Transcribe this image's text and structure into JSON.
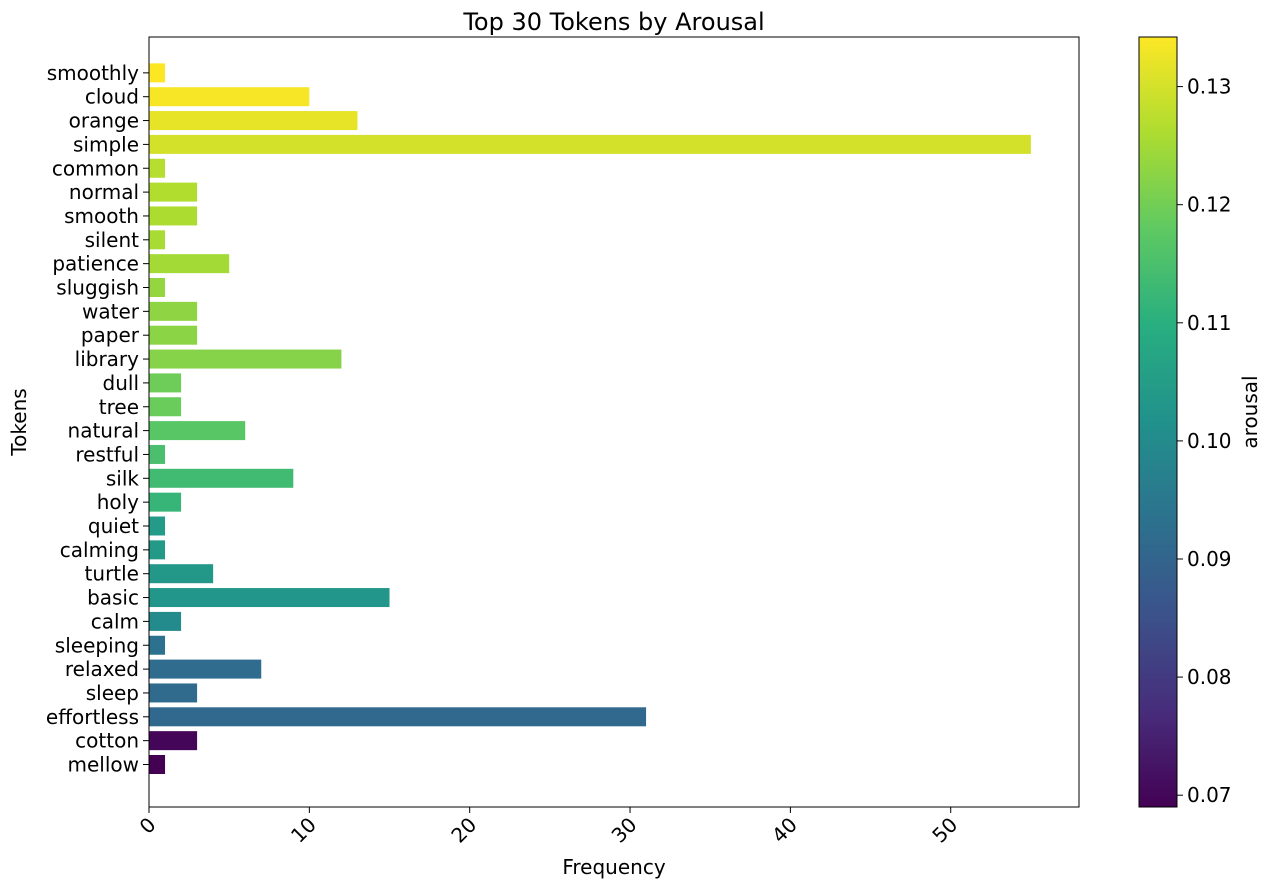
{
  "chart_data": {
    "type": "bar",
    "orientation": "horizontal",
    "title": "Top 30 Tokens by Arousal",
    "xlabel": "Frequency",
    "ylabel": "Tokens",
    "xlim": [
      0,
      58
    ],
    "xticks": [
      "0",
      "10",
      "20",
      "30",
      "40",
      "50"
    ],
    "xtick_values": [
      0,
      10,
      20,
      30,
      40,
      50
    ],
    "grid": false,
    "colorbar": {
      "label": "arousal",
      "range": [
        0.069,
        0.1342
      ],
      "ticks": [
        "0.07",
        "0.08",
        "0.09",
        "0.10",
        "0.11",
        "0.12",
        "0.13"
      ],
      "tick_values": [
        0.07,
        0.08,
        0.09,
        0.1,
        0.11,
        0.12,
        0.13
      ],
      "colormap": "viridis"
    },
    "categories": [
      "mellow",
      "cotton",
      "effortless",
      "sleep",
      "relaxed",
      "sleeping",
      "calm",
      "basic",
      "turtle",
      "calming",
      "quiet",
      "holy",
      "silk",
      "restful",
      "natural",
      "tree",
      "dull",
      "library",
      "paper",
      "water",
      "sluggish",
      "patience",
      "silent",
      "smooth",
      "normal",
      "common",
      "simple",
      "orange",
      "cloud",
      "smoothly"
    ],
    "values": [
      1,
      3,
      31,
      3,
      7,
      1,
      2,
      15,
      4,
      1,
      1,
      2,
      9,
      1,
      6,
      2,
      2,
      12,
      3,
      3,
      1,
      5,
      1,
      3,
      3,
      1,
      55,
      13,
      10,
      1
    ],
    "arousal": [
      0.069,
      0.07,
      0.091,
      0.0915,
      0.092,
      0.0935,
      0.1,
      0.103,
      0.1035,
      0.104,
      0.1045,
      0.112,
      0.1135,
      0.115,
      0.117,
      0.119,
      0.1195,
      0.122,
      0.1225,
      0.123,
      0.1235,
      0.125,
      0.1255,
      0.126,
      0.1265,
      0.127,
      0.13,
      0.132,
      0.1335,
      0.1342
    ]
  }
}
